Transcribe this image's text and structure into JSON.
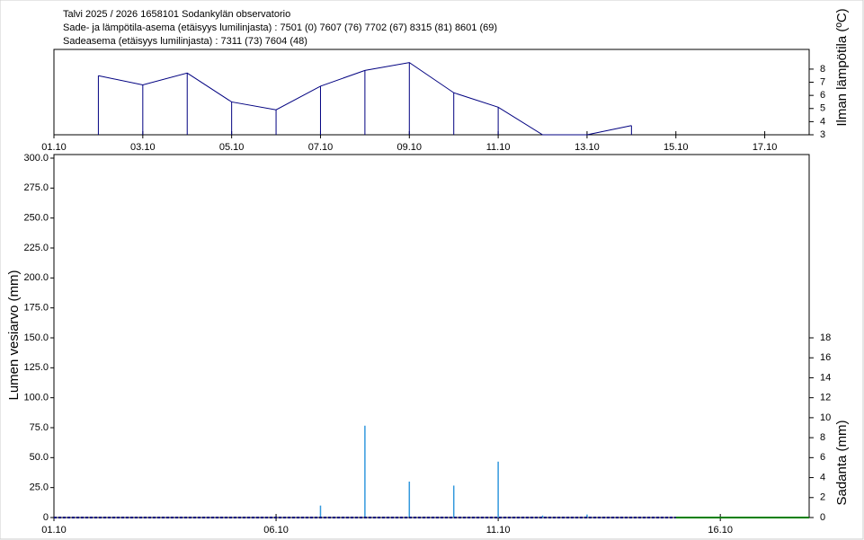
{
  "header": {
    "lines": [
      "Talvi 2025 / 2026 1658101 Sodankylän observatorio",
      "Sade- ja lämpötila-asema (etäisyys lumilinjasta) :  7501 (0) 7607 (76) 7702 (67) 8315 (81) 8601 (69)",
      "Sadeasema (etäisyys lumilinjasta) :  7311 (73) 7604 (48)"
    ]
  },
  "chart_data": [
    {
      "type": "line",
      "ylabel": "Ilman lämpötila (ºC)",
      "drop_lines": true,
      "x": [
        2,
        3,
        4,
        5,
        6,
        7,
        8,
        9,
        10,
        11,
        12,
        13,
        14
      ],
      "series": [
        {
          "color": "#000080",
          "values": [
            7.5,
            6.8,
            7.7,
            5.5,
            4.9,
            6.7,
            7.9,
            8.5,
            6.2,
            5.1,
            3.0,
            3.0,
            3.7
          ]
        }
      ],
      "xlim": [
        1,
        18
      ],
      "xticks": [
        {
          "value": 1,
          "label": "01.10"
        },
        {
          "value": 3,
          "label": "03.10"
        },
        {
          "value": 5,
          "label": "05.10"
        },
        {
          "value": 7,
          "label": "07.10"
        },
        {
          "value": 9,
          "label": "09.10"
        },
        {
          "value": 11,
          "label": "11.10"
        },
        {
          "value": 13,
          "label": "13.10"
        },
        {
          "value": 15,
          "label": "15.10"
        },
        {
          "value": 17,
          "label": "17.10"
        }
      ],
      "ylim": [
        3,
        9.5
      ],
      "yticks": [
        3,
        4,
        5,
        6,
        7,
        8
      ]
    },
    {
      "type": "combo",
      "ylabel": "Lumen vesiarvo (mm)",
      "y2label": "Sadanta (mm)",
      "series": [
        {
          "kind": "bar",
          "axis": "y2",
          "color": "#3399dd",
          "x": [
            7,
            8,
            9,
            10,
            11,
            12,
            13
          ],
          "values": [
            1.2,
            9.2,
            3.6,
            3.2,
            5.6,
            0.2,
            0.3
          ]
        },
        {
          "kind": "line",
          "color": "#000080",
          "dashed": true,
          "x": [
            1,
            15
          ],
          "values": [
            0,
            0
          ]
        },
        {
          "kind": "line",
          "color": "#008000",
          "dashed": false,
          "x": [
            15,
            18
          ],
          "values": [
            0,
            0
          ]
        }
      ],
      "xlim": [
        1,
        18
      ],
      "xticks": [
        {
          "value": 1,
          "label": "01.10"
        },
        {
          "value": 6,
          "label": "06.10"
        },
        {
          "value": 11,
          "label": "11.10"
        },
        {
          "value": 16,
          "label": "16.10"
        }
      ],
      "ylim": [
        0,
        300
      ],
      "yticks": [
        0,
        {
          "value": 25,
          "label": "25.0"
        },
        {
          "value": 50,
          "label": "50.0"
        },
        {
          "value": 75,
          "label": "75.0"
        },
        {
          "value": 100,
          "label": "100.0"
        },
        {
          "value": 125,
          "label": "125.0"
        },
        {
          "value": 150,
          "label": "150.0"
        },
        {
          "value": 175,
          "label": "175.0"
        },
        {
          "value": 200,
          "label": "200.0"
        },
        {
          "value": 225,
          "label": "225.0"
        },
        {
          "value": 250,
          "label": "250.0"
        },
        {
          "value": 275,
          "label": "275.0"
        },
        {
          "value": 300,
          "label": "300.0"
        }
      ],
      "y2lim": [
        0,
        36
      ],
      "y2ticks": [
        0,
        2,
        4,
        6,
        8,
        10,
        12,
        14,
        16,
        18
      ]
    }
  ]
}
